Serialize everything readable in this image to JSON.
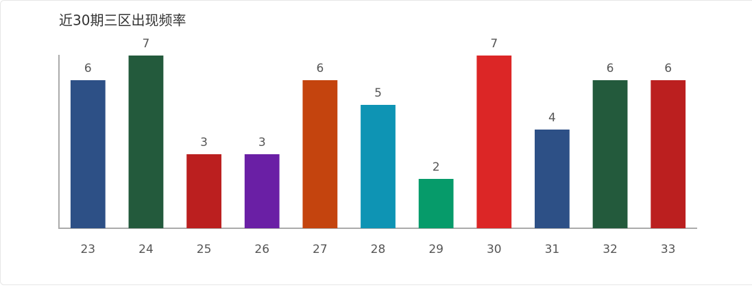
{
  "chart_data": {
    "type": "bar",
    "title": "近30期三区出现频率",
    "categories": [
      "23",
      "24",
      "25",
      "26",
      "27",
      "28",
      "29",
      "30",
      "31",
      "32",
      "33"
    ],
    "values": [
      6,
      7,
      3,
      3,
      6,
      5,
      2,
      7,
      4,
      6,
      6
    ],
    "colors": [
      "#2d5086",
      "#235a3c",
      "#bb1f1f",
      "#6a1fa5",
      "#c4440e",
      "#0e94b4",
      "#069b6a",
      "#dc2626",
      "#2d5086",
      "#235a3c",
      "#bb1f1f"
    ],
    "ylim": [
      0,
      7
    ]
  }
}
